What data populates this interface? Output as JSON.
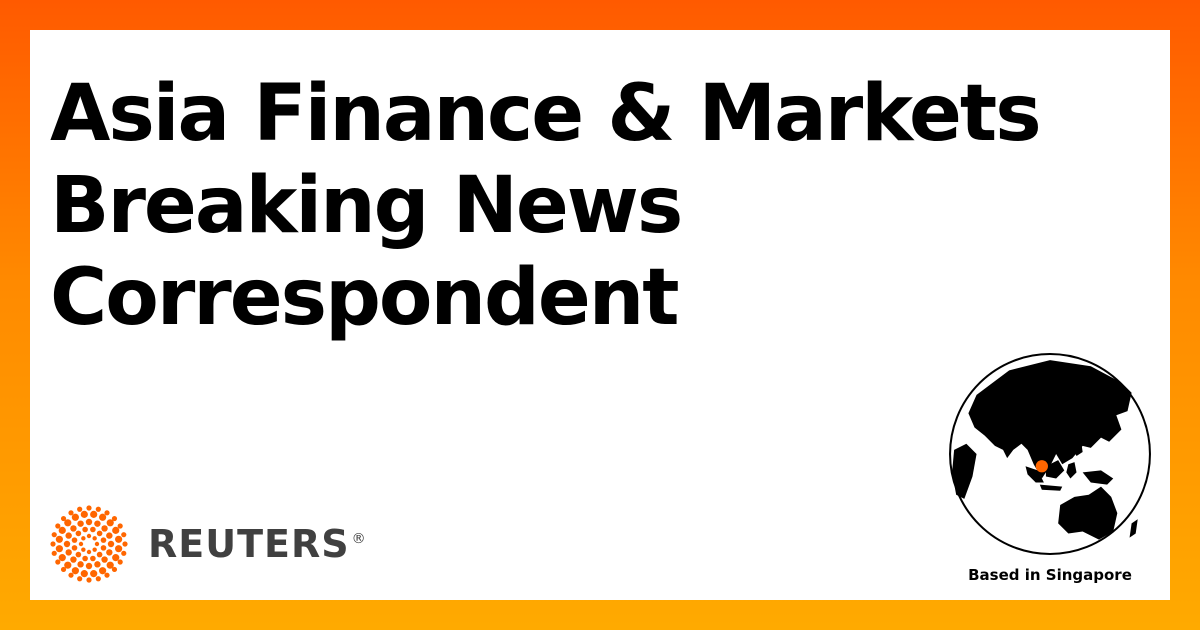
{
  "headline": {
    "line1": "Asia Finance & Markets",
    "line2": "Breaking News",
    "line3": "Correspondent"
  },
  "brand": {
    "name": "REUTERS",
    "registered": "®",
    "logo_icon": "reuters-dot-ring-logo",
    "logo_color": "#ff6600"
  },
  "location": {
    "label": "Based in Singapore",
    "globe_icon": "globe-icon",
    "marker_color": "#ff6600"
  },
  "colors": {
    "frame_top": "#ff5a00",
    "frame_bottom": "#ffaa00",
    "card": "#ffffff",
    "text": "#000000",
    "wordmark": "#404040"
  }
}
